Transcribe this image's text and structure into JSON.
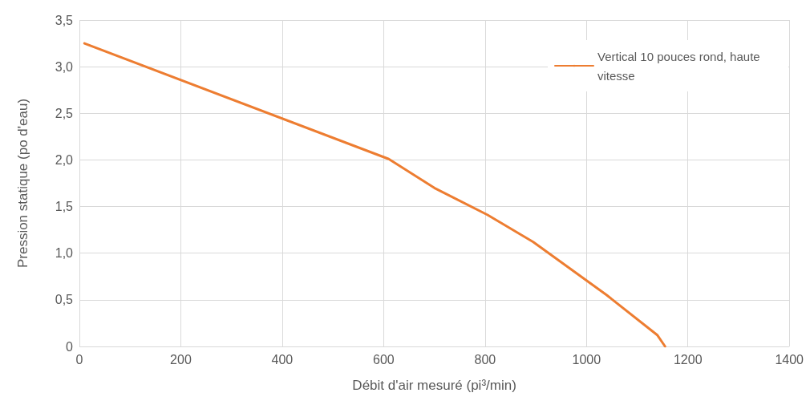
{
  "chart_data": {
    "type": "line",
    "xlabel": "Débit d'air mesuré (pi³/min)",
    "ylabel": "Pression statique (po d'eau)",
    "series": [
      {
        "name": "Vertical 10 pouces rond, haute vitesse",
        "color": "#ed7d31",
        "x": [
          10,
          610,
          700,
          805,
          895,
          1040,
          1140,
          1155
        ],
        "values": [
          3.25,
          2.01,
          1.7,
          1.41,
          1.12,
          0.55,
          0.12,
          0
        ]
      }
    ],
    "xlim": [
      0,
      1400
    ],
    "xticks": [
      0,
      200,
      400,
      600,
      800,
      1000,
      1200,
      1400
    ],
    "ylim": [
      0,
      3.5
    ],
    "yticks": [
      0,
      {
        "value": 0.5,
        "label": "0,5"
      },
      {
        "value": 1,
        "label": "1,0"
      },
      {
        "value": 1.5,
        "label": "1,5"
      },
      {
        "value": 2,
        "label": "2,0"
      },
      {
        "value": 2.5,
        "label": "2,5"
      },
      {
        "value": 3,
        "label": "3,0"
      },
      {
        "value": 3.5,
        "label": "3,5"
      }
    ],
    "grid": true,
    "legend": "top right",
    "marker": "none",
    "line_style": "solid"
  }
}
